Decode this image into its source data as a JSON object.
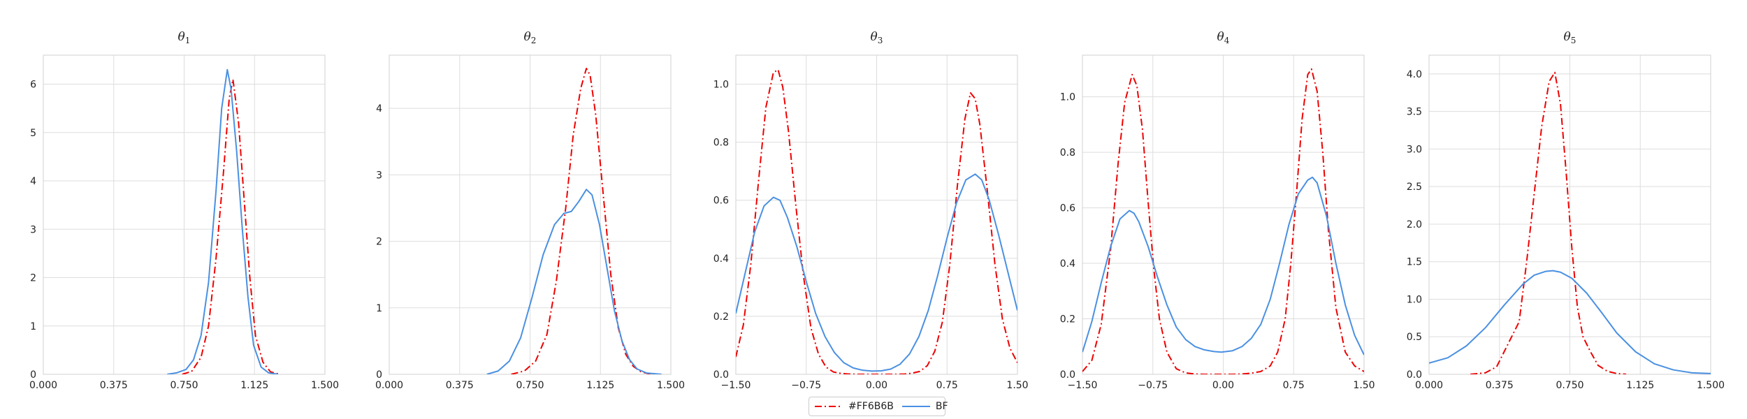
{
  "chart_data": {
    "type": "line",
    "subplots": [
      {
        "title_base": "θ",
        "title_sub": "1",
        "xlim": [
          0,
          1.5
        ],
        "ylim": [
          0,
          6.6
        ],
        "xticks": [
          "0.000",
          "0.375",
          "0.750",
          "1.125",
          "1.500"
        ],
        "yticks": [
          0,
          1,
          2,
          3,
          4,
          5,
          6
        ],
        "ytick_labels": [
          "0",
          "1",
          "2",
          "3",
          "4",
          "5",
          "6"
        ],
        "series": [
          {
            "name": "#FF6B6B",
            "x": [
              0.74,
              0.79,
              0.84,
              0.88,
              0.92,
              0.96,
              0.99,
              1.01,
              1.04,
              1.07,
              1.1,
              1.13,
              1.17,
              1.21,
              1.26
            ],
            "y": [
              0,
              0.06,
              0.35,
              1.0,
              2.4,
              4.2,
              5.7,
              6.1,
              5.2,
              3.6,
              2.0,
              0.8,
              0.25,
              0.05,
              0
            ]
          },
          {
            "name": "BF",
            "x": [
              0.66,
              0.71,
              0.76,
              0.8,
              0.84,
              0.88,
              0.92,
              0.95,
              0.98,
              1.0,
              1.03,
              1.06,
              1.09,
              1.12,
              1.16,
              1.2,
              1.25
            ],
            "y": [
              0,
              0.03,
              0.1,
              0.3,
              0.8,
              1.9,
              3.8,
              5.5,
              6.3,
              5.9,
              4.6,
              3.0,
              1.6,
              0.6,
              0.15,
              0.03,
              0
            ]
          }
        ]
      },
      {
        "title_base": "θ",
        "title_sub": "2",
        "xlim": [
          0,
          1.5
        ],
        "ylim": [
          0,
          4.8
        ],
        "xticks": [
          "0.000",
          "0.375",
          "0.750",
          "1.125",
          "1.500"
        ],
        "yticks": [
          0,
          1,
          2,
          3,
          4
        ],
        "ytick_labels": [
          "0",
          "1",
          "2",
          "3",
          "4"
        ],
        "series": [
          {
            "name": "#FF6B6B",
            "x": [
              0.65,
              0.72,
              0.78,
              0.84,
              0.89,
              0.94,
              0.98,
              1.02,
              1.05,
              1.07,
              1.1,
              1.14,
              1.18,
              1.22,
              1.26,
              1.3,
              1.34,
              1.38,
              1.42
            ],
            "y": [
              0,
              0.05,
              0.2,
              0.6,
              1.4,
              2.5,
              3.6,
              4.3,
              4.6,
              4.5,
              3.9,
              2.7,
              1.5,
              0.7,
              0.3,
              0.12,
              0.04,
              0.01,
              0
            ]
          },
          {
            "name": "BF",
            "x": [
              0.52,
              0.58,
              0.64,
              0.7,
              0.76,
              0.82,
              0.88,
              0.93,
              0.97,
              1.01,
              1.05,
              1.08,
              1.12,
              1.16,
              1.2,
              1.24,
              1.28,
              1.32,
              1.37,
              1.45
            ],
            "y": [
              0,
              0.05,
              0.2,
              0.55,
              1.15,
              1.8,
              2.25,
              2.42,
              2.45,
              2.6,
              2.78,
              2.7,
              2.25,
              1.6,
              0.95,
              0.5,
              0.22,
              0.08,
              0.02,
              0
            ]
          }
        ]
      },
      {
        "title_base": "θ",
        "title_sub": "3",
        "xlim": [
          -1.5,
          1.5
        ],
        "ylim": [
          0,
          1.1
        ],
        "xticks": [
          "−1.50",
          "−0.75",
          "0.00",
          "0.75",
          "1.50"
        ],
        "yticks": [
          0,
          0.2,
          0.4,
          0.6,
          0.8,
          1.0
        ],
        "ytick_labels": [
          "0.0",
          "0.2",
          "0.4",
          "0.6",
          "0.8",
          "1.0"
        ],
        "series": [
          {
            "name": "#FF6B6B",
            "x": [
              -1.5,
              -1.42,
              -1.34,
              -1.26,
              -1.18,
              -1.1,
              -1.05,
              -1.0,
              -0.94,
              -0.86,
              -0.78,
              -0.7,
              -0.62,
              -0.54,
              -0.46,
              -0.38,
              -0.3,
              -0.2,
              -0.1,
              0,
              0.1,
              0.2,
              0.3,
              0.38,
              0.46,
              0.54,
              0.62,
              0.7,
              0.78,
              0.86,
              0.94,
              1.0,
              1.05,
              1.1,
              1.18,
              1.26,
              1.34,
              1.42,
              1.5
            ],
            "y": [
              0.06,
              0.17,
              0.38,
              0.66,
              0.92,
              1.04,
              1.05,
              0.99,
              0.84,
              0.58,
              0.34,
              0.16,
              0.07,
              0.025,
              0.008,
              0.003,
              0.001,
              0,
              0,
              0,
              0,
              0,
              0.001,
              0.004,
              0.01,
              0.03,
              0.08,
              0.18,
              0.38,
              0.65,
              0.88,
              0.97,
              0.95,
              0.86,
              0.63,
              0.38,
              0.19,
              0.09,
              0.04
            ]
          },
          {
            "name": "BF",
            "x": [
              -1.5,
              -1.4,
              -1.3,
              -1.2,
              -1.1,
              -1.03,
              -0.95,
              -0.85,
              -0.75,
              -0.65,
              -0.55,
              -0.45,
              -0.35,
              -0.25,
              -0.15,
              -0.05,
              0.05,
              0.15,
              0.25,
              0.35,
              0.45,
              0.55,
              0.65,
              0.75,
              0.85,
              0.95,
              1.05,
              1.12,
              1.2,
              1.3,
              1.4,
              1.5
            ],
            "y": [
              0.21,
              0.35,
              0.49,
              0.58,
              0.61,
              0.6,
              0.54,
              0.44,
              0.32,
              0.21,
              0.13,
              0.075,
              0.04,
              0.022,
              0.014,
              0.011,
              0.012,
              0.018,
              0.035,
              0.07,
              0.13,
              0.22,
              0.34,
              0.47,
              0.59,
              0.67,
              0.69,
              0.67,
              0.6,
              0.48,
              0.35,
              0.22
            ]
          }
        ]
      },
      {
        "title_base": "θ",
        "title_sub": "4",
        "xlim": [
          -1.5,
          1.5
        ],
        "ylim": [
          0,
          1.15
        ],
        "xticks": [
          "−1.50",
          "−0.75",
          "0.00",
          "0.75",
          "1.50"
        ],
        "yticks": [
          0,
          0.2,
          0.4,
          0.6,
          0.8,
          1.0
        ],
        "ytick_labels": [
          "0.0",
          "0.2",
          "0.4",
          "0.6",
          "0.8",
          "1.0"
        ],
        "series": [
          {
            "name": "#FF6B6B",
            "x": [
              -1.5,
              -1.4,
              -1.3,
              -1.2,
              -1.12,
              -1.05,
              -0.97,
              -0.92,
              -0.86,
              -0.8,
              -0.74,
              -0.68,
              -0.6,
              -0.5,
              -0.4,
              -0.3,
              -0.2,
              -0.1,
              0,
              0.1,
              0.2,
              0.3,
              0.4,
              0.5,
              0.58,
              0.66,
              0.72,
              0.78,
              0.84,
              0.9,
              0.94,
              1.0,
              1.06,
              1.12,
              1.2,
              1.3,
              1.4,
              1.5
            ],
            "y": [
              0.01,
              0.05,
              0.18,
              0.45,
              0.76,
              0.98,
              1.08,
              1.04,
              0.88,
              0.62,
              0.38,
              0.2,
              0.08,
              0.02,
              0.005,
              0.001,
              0,
              0,
              0,
              0,
              0.001,
              0.004,
              0.01,
              0.03,
              0.08,
              0.2,
              0.4,
              0.65,
              0.92,
              1.08,
              1.1,
              1.02,
              0.8,
              0.52,
              0.24,
              0.08,
              0.03,
              0.01
            ]
          },
          {
            "name": "BF",
            "x": [
              -1.5,
              -1.4,
              -1.3,
              -1.2,
              -1.1,
              -1.0,
              -0.95,
              -0.9,
              -0.8,
              -0.7,
              -0.6,
              -0.5,
              -0.4,
              -0.3,
              -0.2,
              -0.1,
              -0.02,
              0.1,
              0.2,
              0.3,
              0.4,
              0.5,
              0.6,
              0.7,
              0.8,
              0.9,
              0.95,
              1.0,
              1.1,
              1.2,
              1.3,
              1.4,
              1.5
            ],
            "y": [
              0.08,
              0.19,
              0.33,
              0.46,
              0.56,
              0.59,
              0.58,
              0.55,
              0.46,
              0.35,
              0.25,
              0.17,
              0.125,
              0.1,
              0.088,
              0.082,
              0.08,
              0.085,
              0.1,
              0.13,
              0.18,
              0.27,
              0.4,
              0.54,
              0.65,
              0.7,
              0.71,
              0.69,
              0.57,
              0.4,
              0.25,
              0.14,
              0.07
            ]
          }
        ]
      },
      {
        "title_base": "θ",
        "title_sub": "5",
        "xlim": [
          0,
          1.5
        ],
        "ylim": [
          0,
          4.25
        ],
        "xticks": [
          "0.000",
          "0.375",
          "0.750",
          "1.125",
          "1.500"
        ],
        "yticks": [
          0,
          0.5,
          1.0,
          1.5,
          2.0,
          2.5,
          3.0,
          3.5,
          4.0
        ],
        "ytick_labels": [
          "0.0",
          "0.5",
          "1.0",
          "1.5",
          "2.0",
          "2.5",
          "3.0",
          "3.5",
          "4.0"
        ],
        "series": [
          {
            "name": "#FF6B6B",
            "x": [
              0.22,
              0.3,
              0.36,
              0.4,
              0.44,
              0.48,
              0.52,
              0.56,
              0.6,
              0.64,
              0.67,
              0.7,
              0.73,
              0.76,
              0.79,
              0.82,
              0.86,
              0.9,
              0.95,
              1.0,
              1.05
            ],
            "y": [
              0,
              0.02,
              0.1,
              0.3,
              0.5,
              0.7,
              1.5,
              2.4,
              3.3,
              3.9,
              4.02,
              3.6,
              2.7,
              1.7,
              0.9,
              0.5,
              0.3,
              0.12,
              0.04,
              0.01,
              0
            ]
          },
          {
            "name": "BF",
            "x": [
              0,
              0.1,
              0.2,
              0.3,
              0.4,
              0.5,
              0.56,
              0.62,
              0.66,
              0.7,
              0.76,
              0.84,
              0.92,
              1.0,
              1.1,
              1.2,
              1.3,
              1.4,
              1.5
            ],
            "y": [
              0.15,
              0.22,
              0.38,
              0.62,
              0.92,
              1.2,
              1.32,
              1.37,
              1.38,
              1.36,
              1.28,
              1.08,
              0.82,
              0.55,
              0.3,
              0.14,
              0.06,
              0.02,
              0.01
            ]
          }
        ]
      }
    ],
    "legend": {
      "placement": "bottom-center",
      "entries": [
        {
          "label": "#FF6B6B",
          "color": "#ee0000",
          "style": "dash-dot"
        },
        {
          "label": "BF",
          "color": "#4a90e2",
          "style": "solid"
        }
      ]
    },
    "colors": {
      "grid": "#dddddd",
      "axis": "#d0d0d0",
      "text": "#222222"
    }
  }
}
